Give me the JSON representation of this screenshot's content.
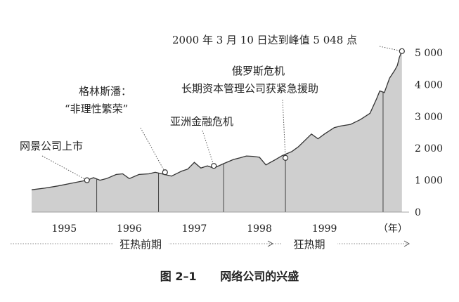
{
  "chart_data": {
    "type": "area",
    "title": "",
    "xlabel": "",
    "ylabel": "",
    "x_unit_label": "（年）",
    "x_ticks": [
      "1995",
      "1996",
      "1997",
      "1998",
      "1999"
    ],
    "y_ticks": [
      "0",
      "1 000",
      "2 000",
      "3 000",
      "4 000",
      "5 000"
    ],
    "ylim": [
      0,
      5000
    ],
    "xlim": [
      1994.5,
      2000.3
    ],
    "grid": false,
    "fill_color": "#cfcfcf",
    "line_color": "#333333",
    "series": [
      {
        "values": [
          [
            1994.5,
            700
          ],
          [
            1994.7,
            750
          ],
          [
            1994.9,
            820
          ],
          [
            1995.1,
            900
          ],
          [
            1995.25,
            960
          ],
          [
            1995.35,
            1000
          ],
          [
            1995.45,
            1080
          ],
          [
            1995.55,
            1000
          ],
          [
            1995.65,
            1050
          ],
          [
            1995.8,
            1180
          ],
          [
            1995.9,
            1200
          ],
          [
            1996.0,
            1050
          ],
          [
            1996.15,
            1180
          ],
          [
            1996.3,
            1200
          ],
          [
            1996.4,
            1250
          ],
          [
            1996.5,
            1200
          ],
          [
            1996.65,
            1130
          ],
          [
            1996.8,
            1280
          ],
          [
            1996.9,
            1350
          ],
          [
            1997.0,
            1560
          ],
          [
            1997.1,
            1380
          ],
          [
            1997.2,
            1450
          ],
          [
            1997.3,
            1380
          ],
          [
            1997.45,
            1520
          ],
          [
            1997.6,
            1650
          ],
          [
            1997.7,
            1700
          ],
          [
            1997.8,
            1760
          ],
          [
            1997.9,
            1750
          ],
          [
            1998.0,
            1720
          ],
          [
            1998.1,
            1480
          ],
          [
            1998.25,
            1650
          ],
          [
            1998.35,
            1770
          ],
          [
            1998.5,
            1900
          ],
          [
            1998.6,
            2050
          ],
          [
            1998.7,
            2250
          ],
          [
            1998.8,
            2450
          ],
          [
            1998.9,
            2300
          ],
          [
            1999.0,
            2450
          ],
          [
            1999.15,
            2650
          ],
          [
            1999.25,
            2700
          ],
          [
            1999.4,
            2750
          ],
          [
            1999.55,
            2900
          ],
          [
            1999.7,
            3100
          ],
          [
            1999.8,
            3550
          ],
          [
            1999.85,
            3800
          ],
          [
            1999.92,
            3750
          ],
          [
            2000.0,
            4200
          ],
          [
            2000.08,
            4450
          ],
          [
            2000.12,
            4600
          ],
          [
            2000.15,
            4850
          ],
          [
            2000.19,
            5048
          ]
        ]
      }
    ],
    "event_dividers": [
      1995.5,
      1996.45,
      1997.45,
      1998.4,
      1999.9
    ],
    "annotations": [
      {
        "text": "网景公司上市",
        "x": 1995.35,
        "y": 1000,
        "dot": true
      },
      {
        "text": "格林斯潘：",
        "text2": "“非理性繁荣”",
        "x": 1996.55,
        "y": 1250,
        "dot": true
      },
      {
        "text": "亚洲金融危机",
        "x": 1997.3,
        "y": 1450,
        "dot": true
      },
      {
        "text": "俄罗斯危机",
        "text2": "长期资本管理公司获紧急援助",
        "x": 1998.4,
        "y": 1700,
        "dot": true
      },
      {
        "text": "2000 年 3 月 10 日达到峰值 5 048 点",
        "x": 2000.19,
        "y": 5048,
        "dot": true
      }
    ],
    "phases": [
      {
        "label": "狂热前期"
      },
      {
        "label": "狂热期"
      }
    ]
  },
  "caption": {
    "figure_number": "图 2–1",
    "text": "网络公司的兴盛"
  }
}
